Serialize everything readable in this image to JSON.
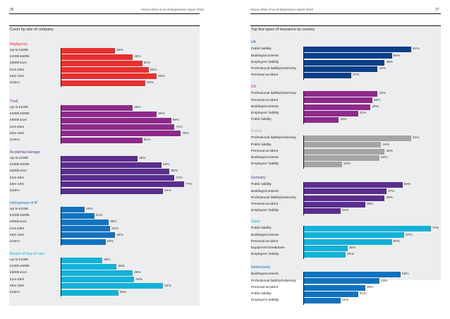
{
  "left_page": {
    "page_number": "26",
    "running_title": "Hiscox DNA of an Entrepreneur report 2016",
    "panel_title": "Cover by size of company"
  },
  "right_page": {
    "page_number": "27",
    "running_title": "Hiscox DNA of an Entrepreneur report 2016",
    "panel_title": "Top five types of insurance by country"
  },
  "colors": {
    "red": "#e8312f",
    "magenta": "#8e2a8b",
    "purple": "#5b2d8e",
    "blue": "#0f73c0",
    "cyan": "#12b1d8",
    "navy": "#0b3f8a",
    "grey": "#a4a5a7",
    "panel_bg": "#ecedef"
  },
  "chart_data": [
    {
      "type": "bar",
      "orientation": "horizontal",
      "title": "Cover by size of company",
      "unit": "%",
      "categories": [
        "Up to £100k",
        "£100k-£500k",
        "£500k-£1m",
        "£1m-£5m",
        "£5m-10m",
        "£10m+"
      ],
      "groups": [
        {
          "name": "Negligence",
          "color_key": "red",
          "values": [
            34,
            45,
            51,
            55,
            60,
            53
          ],
          "labels": [
            "34%",
            "45%",
            "51%",
            "55%",
            "60%",
            "53%"
          ]
        },
        {
          "name": "Theft",
          "color_key": "magenta",
          "values": [
            45,
            60,
            69,
            71,
            75,
            51
          ],
          "labels": [
            "45%",
            "60%",
            "69%",
            "71%",
            "75%",
            "51%"
          ]
        },
        {
          "name": "Accidental damage",
          "color_key": "purple",
          "values": [
            48,
            63,
            68,
            71,
            77,
            64
          ],
          "labels": [
            "48%",
            "63%",
            "68%",
            "71%",
            "77%",
            "64%"
          ]
        },
        {
          "name": "Infringement of IP",
          "color_key": "blue",
          "values": [
            15,
            21,
            30,
            31,
            34,
            28
          ],
          "labels": [
            "15%",
            "21%",
            "30%",
            "31%",
            "34%",
            "28%"
          ]
        },
        {
          "name": "Breach of duty of care",
          "color_key": "cyan",
          "values": [
            26,
            35,
            45,
            46,
            64,
            36
          ],
          "labels": [
            "26%",
            "35%",
            "45%",
            "46%",
            "64%",
            "36%"
          ]
        }
      ],
      "xlim": [
        0,
        80
      ],
      "grid": false
    },
    {
      "type": "bar",
      "orientation": "horizontal",
      "title": "Top five types of insurance by country",
      "unit": "%",
      "groups": [
        {
          "name": "UK",
          "color_key": "navy",
          "categories": [
            "Public liability",
            "Buildings/contents",
            "Employers' liability",
            "Professional liability/indemnity",
            "Personal accident"
          ],
          "values": [
            61,
            50,
            46,
            42,
            27
          ],
          "labels": [
            "61%",
            "50%",
            "46%",
            "42%",
            "27%"
          ]
        },
        {
          "name": "US",
          "color_key": "magenta",
          "categories": [
            "Professional liability/indemnity",
            "Personal accident",
            "Buildings/contents",
            "Employers' liability",
            "Public liability"
          ],
          "values": [
            42,
            39,
            38,
            31,
            20
          ],
          "labels": [
            "42%",
            "39%",
            "38%",
            "31%",
            "20%"
          ]
        },
        {
          "name": "France",
          "color_key": "grey",
          "categories": [
            "Professional liability/indemnity",
            "Public liability",
            "Personal accident",
            "Buildings/contents",
            "Employers' liability"
          ],
          "values": [
            61,
            44,
            46,
            43,
            22
          ],
          "labels": [
            "61%",
            "44%",
            "46%",
            "43%",
            "22%"
          ]
        },
        {
          "name": "Germany",
          "color_key": "purple",
          "categories": [
            "Public liability",
            "Buildings/contents",
            "Professional liability/indemnity",
            "Personal accident",
            "Employers' liability"
          ],
          "values": [
            56,
            47,
            46,
            35,
            21
          ],
          "labels": [
            "56%",
            "47%",
            "46%",
            "35%",
            "21%"
          ]
        },
        {
          "name": "Spain",
          "color_key": "cyan",
          "categories": [
            "Public liability",
            "Buildings/contents",
            "Personal accident",
            "Equipment breakdown",
            "Employers' liability"
          ],
          "values": [
            72,
            57,
            50,
            25,
            24
          ],
          "labels": [
            "72%",
            "57%",
            "50%",
            "25%",
            "24%"
          ]
        },
        {
          "name": "Netherlands",
          "color_key": "blue",
          "categories": [
            "Buildings/contents",
            "Professional liability/indemnity",
            "Personal accident",
            "Public liability",
            "Employer's liability"
          ],
          "values": [
            55,
            43,
            35,
            31,
            21
          ],
          "labels": [
            "55%",
            "43%",
            "35%",
            "31%",
            "21%"
          ]
        }
      ],
      "xlim": [
        0,
        75
      ],
      "grid": false
    }
  ]
}
